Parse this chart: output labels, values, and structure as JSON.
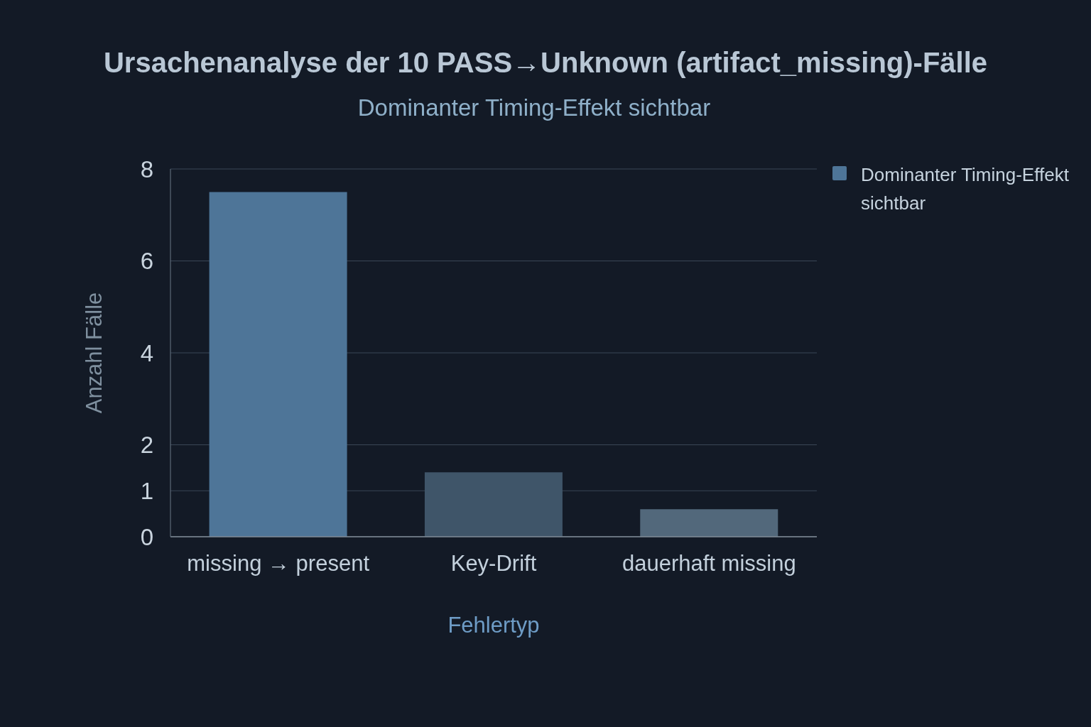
{
  "chart_data": {
    "type": "bar",
    "title": "Ursachenanalyse der 10 PASS→Unknown (artifact_missing)-Fälle",
    "subtitle": "Dominanter Timing-Effekt sichtbar",
    "xlabel": "Fehlertyp",
    "ylabel": "Anzahl Fälle",
    "categories": [
      "missing → present",
      "Key-Drift",
      "dauerhaft missing"
    ],
    "series": [
      {
        "name": "Dominanter Timing-Effekt sichtbar",
        "color": "#4e7598",
        "colors": [
          "#4e7598",
          "#3f5569",
          "#52687b"
        ],
        "values": [
          7.5,
          1.4,
          0.6
        ]
      }
    ],
    "ylim": [
      0,
      8
    ],
    "yticks": [
      0,
      1,
      2,
      4,
      6,
      8
    ],
    "grid": "y",
    "legend": "top right"
  }
}
